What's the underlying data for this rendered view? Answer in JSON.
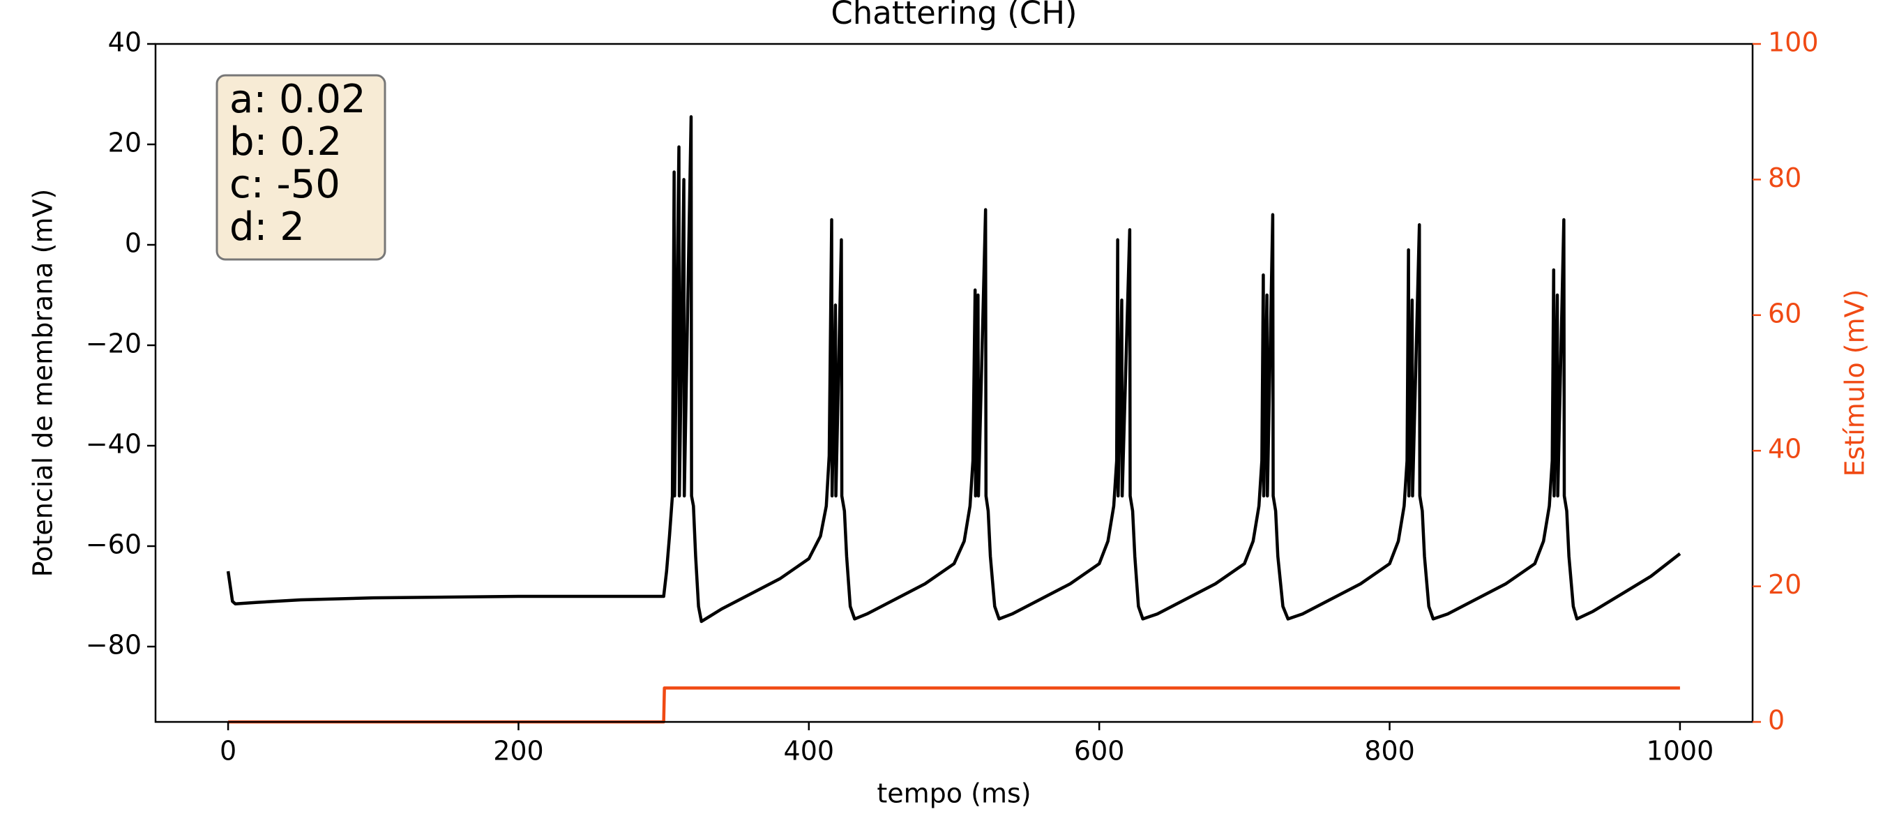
{
  "chart_data": {
    "type": "line",
    "title": "Chattering (CH)",
    "x_label": "tempo (ms)",
    "y_label": "Potencial de membrana (mV)",
    "y2_label": "Estímulo (mV)",
    "annotation": [
      "a: 0.02",
      "b: 0.2",
      "c: -50",
      "d: 2"
    ],
    "xlim": [
      -50,
      1050
    ],
    "xticks": [
      0,
      200,
      400,
      600,
      800,
      1000
    ],
    "ylim": [
      -95,
      40
    ],
    "yticks": [
      {
        "value": -80,
        "label": "−80"
      },
      {
        "value": -60,
        "label": "−60"
      },
      {
        "value": -40,
        "label": "−40"
      },
      {
        "value": -20,
        "label": "−20"
      },
      0,
      20,
      40
    ],
    "y2lim": [
      0,
      100
    ],
    "y2ticks": [
      0,
      20,
      40,
      60,
      80,
      100
    ],
    "y2_color": "#f04a14",
    "series": [
      {
        "color": "#000000",
        "x": [
          0,
          3,
          5,
          20,
          50,
          100,
          200,
          300,
          302,
          304,
          306,
          307.2,
          307.5,
          310.5,
          310.8,
          313.9,
          314.2,
          318.9,
          319.2,
          320.5,
          322,
          324,
          326,
          340,
          360,
          380,
          400,
          408,
          412,
          414,
          415.7,
          416,
          418.3,
          418.6,
          422.4,
          422.7,
          424.5,
          426,
          428.5,
          431.5,
          440,
          460,
          480,
          500,
          507,
          511,
          513,
          514.5,
          514.8,
          516.5,
          516.8,
          521.7,
          522,
          523.5,
          525,
          528,
          531,
          540,
          560,
          580,
          600,
          606,
          610,
          612,
          612.7,
          613,
          615.5,
          615.8,
          621,
          621.3,
          623,
          624.5,
          627,
          630,
          640,
          660,
          680,
          700,
          706,
          710,
          712,
          713,
          713.3,
          715.5,
          715.8,
          719.5,
          719.8,
          721.5,
          723,
          726.5,
          730,
          740,
          760,
          780,
          800,
          806,
          810,
          812,
          813,
          813.3,
          815.5,
          815.8,
          820.5,
          820.8,
          822.5,
          824,
          827,
          830,
          840,
          860,
          880,
          900,
          906,
          910,
          912,
          913,
          913.3,
          915.5,
          915.8,
          920,
          920.3,
          922,
          923.5,
          926.5,
          929,
          940,
          960,
          980,
          1000
        ],
        "values": [
          -65,
          -71,
          -71.5,
          -71.2,
          -70.7,
          -70.3,
          -70,
          -70,
          -65,
          -58,
          -50,
          14.5,
          -50,
          19.5,
          -50,
          13,
          -50,
          25.5,
          -50,
          -52,
          -62,
          -72,
          -75,
          -72.5,
          -69.5,
          -66.5,
          -62.5,
          -58,
          -52,
          -42,
          5,
          -50,
          -12,
          -50,
          1,
          -50,
          -53,
          -62,
          -72,
          -74.5,
          -73.5,
          -70.5,
          -67.5,
          -63.5,
          -59,
          -52,
          -43,
          -9,
          -50,
          -10,
          -50,
          7,
          -50,
          -53,
          -62,
          -72,
          -74.5,
          -73.5,
          -70.5,
          -67.5,
          -63.5,
          -59,
          -52,
          -43,
          1,
          -50,
          -11,
          -50,
          3,
          -50,
          -53,
          -62,
          -72,
          -74.5,
          -73.5,
          -70.5,
          -67.5,
          -63.5,
          -59,
          -52,
          -43,
          -6,
          -50,
          -10,
          -50,
          6,
          -50,
          -53,
          -62,
          -72,
          -74.5,
          -73.5,
          -70.5,
          -67.5,
          -63.5,
          -59,
          -52,
          -43,
          -1,
          -50,
          -11,
          -50,
          4,
          -50,
          -53,
          -62,
          -72,
          -74.5,
          -73.5,
          -70.5,
          -67.5,
          -63.5,
          -59,
          -52,
          -43,
          -5,
          -50,
          -10,
          -50,
          5,
          -50,
          -53,
          -62,
          -72,
          -74.5,
          -73,
          -69.5,
          -66,
          -61.5
        ]
      },
      {
        "color": "#f04a14",
        "axis": "y2",
        "x": [
          0,
          300,
          300.5,
          1000
        ],
        "values": [
          0,
          0,
          5,
          5
        ]
      }
    ]
  }
}
